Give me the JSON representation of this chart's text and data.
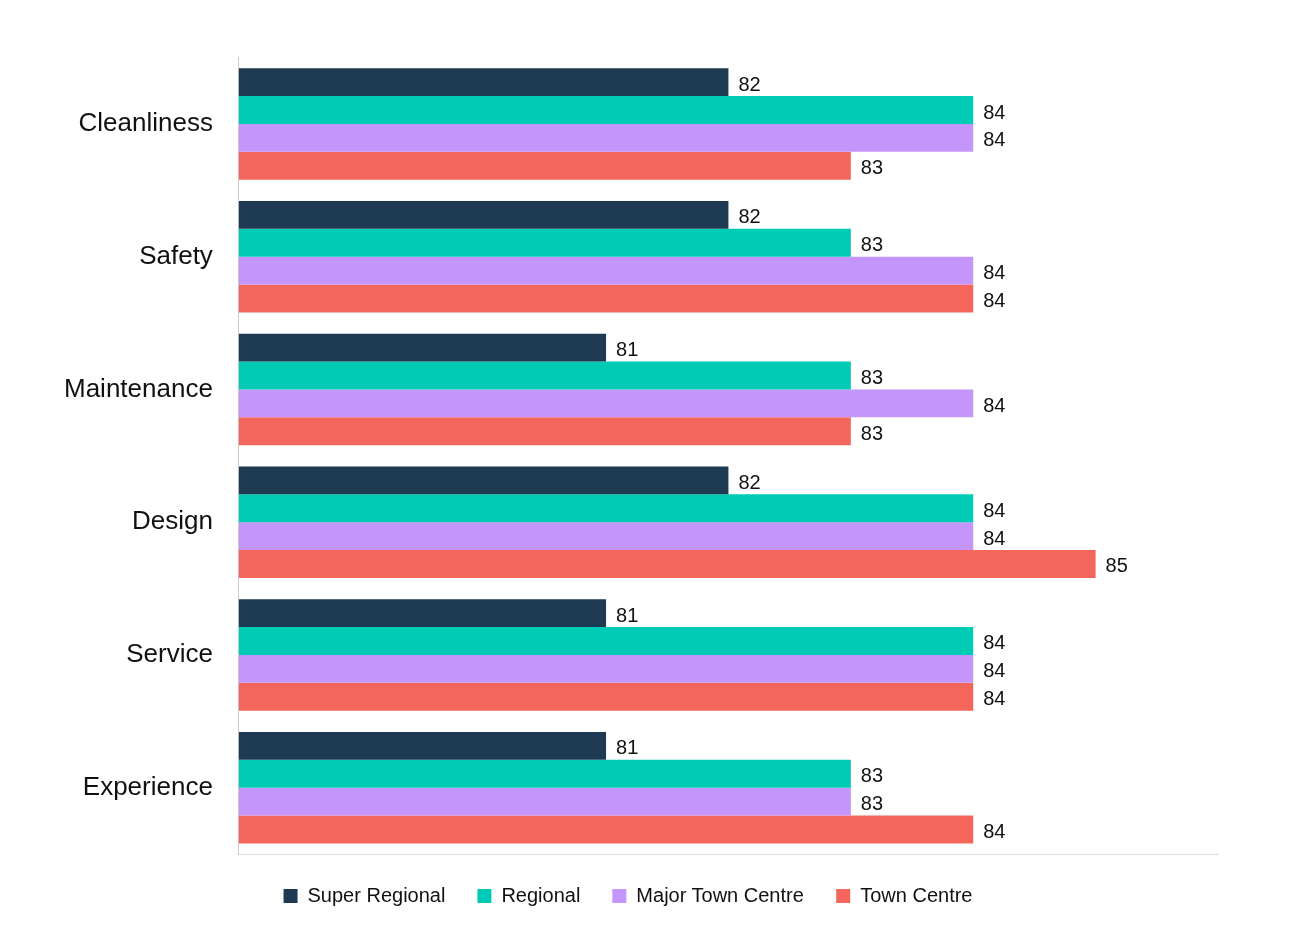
{
  "chart_data": {
    "type": "bar",
    "orientation": "horizontal",
    "categories": [
      "Cleanliness",
      "Safety",
      "Maintenance",
      "Design",
      "Service",
      "Experience"
    ],
    "series": [
      {
        "name": "Super Regional",
        "color": "#1e3a52",
        "values": [
          82,
          82,
          81,
          82,
          81,
          81
        ]
      },
      {
        "name": "Regional",
        "color": "#00cbb5",
        "values": [
          84,
          83,
          83,
          84,
          84,
          83
        ]
      },
      {
        "name": "Major Town Centre",
        "color": "#c495fb",
        "values": [
          84,
          84,
          84,
          84,
          84,
          83
        ]
      },
      {
        "name": "Town Centre",
        "color": "#f4665b",
        "values": [
          83,
          84,
          83,
          85,
          84,
          84
        ]
      }
    ],
    "xlim": [
      78,
      86
    ],
    "data_labels": true,
    "legend": "bottom",
    "grid": false,
    "tick_labels": "y"
  }
}
